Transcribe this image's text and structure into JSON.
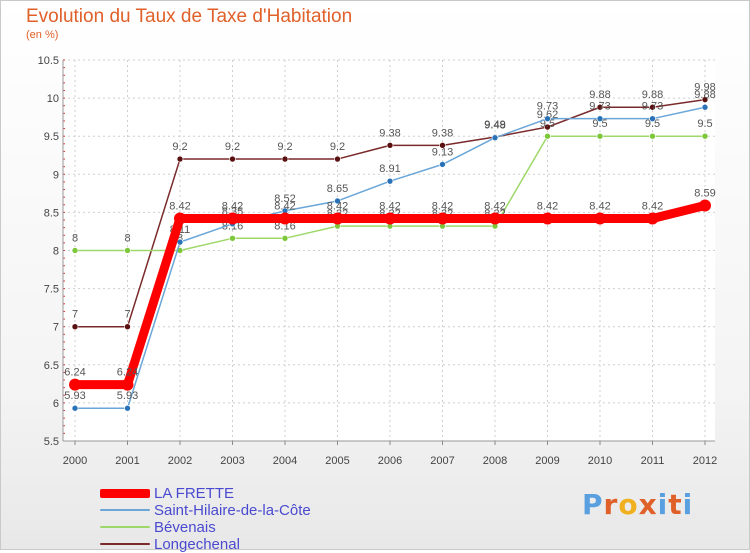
{
  "title": "Evolution du Taux de Taxe d'Habitation",
  "unit": "(en %)",
  "logo": {
    "text": "Proxiti",
    "letter_colors": [
      "#5aa0e0",
      "#e0602a",
      "#f0b020",
      "#e0602a",
      "#5aa0e0",
      "#e0602a",
      "#5aa0e0"
    ]
  },
  "chart_data": {
    "type": "line",
    "title": "Evolution du Taux de Taxe d'Habitation",
    "ylabel": "(en %)",
    "xlabel": "",
    "ylim": [
      5.5,
      10.5
    ],
    "yticks": [
      5.5,
      6,
      6.5,
      7,
      7.5,
      8,
      8.5,
      9,
      9.5,
      10,
      10.5
    ],
    "grid": true,
    "legend_position": "bottom-left",
    "categories": [
      "2000",
      "2001",
      "2002",
      "2003",
      "2004",
      "2005",
      "2006",
      "2007",
      "2008",
      "2009",
      "2010",
      "2011",
      "2012"
    ],
    "series": [
      {
        "name": "Longechenal",
        "color": "#7a2a2a",
        "marker": "#5a1010",
        "values": [
          7,
          7,
          9.2,
          9.2,
          9.2,
          9.2,
          9.38,
          9.38,
          9.49,
          9.62,
          9.88,
          9.88,
          9.98
        ]
      },
      {
        "name": "Bévenais",
        "color": "#9ed86a",
        "marker": "#7cc83a",
        "values": [
          8,
          8,
          8,
          8.16,
          8.16,
          8.32,
          8.32,
          8.32,
          8.32,
          9.5,
          9.5,
          9.5,
          9.5
        ]
      },
      {
        "name": "Saint-Hilaire-de-la-Côte",
        "color": "#6aa6d8",
        "marker": "#2a72b8",
        "values": [
          5.93,
          5.93,
          8.11,
          8.35,
          8.52,
          8.65,
          8.91,
          9.13,
          9.48,
          9.73,
          9.73,
          9.73,
          9.88
        ]
      },
      {
        "name": "LA FRETTE",
        "color": "#ff0000",
        "marker": "#ff0000",
        "values": [
          6.24,
          6.24,
          8.42,
          8.42,
          8.42,
          8.42,
          8.42,
          8.42,
          8.42,
          8.42,
          8.42,
          8.42,
          8.59
        ]
      }
    ],
    "legend": [
      {
        "name": "LA FRETTE",
        "color": "#ff0000",
        "thickness": 9
      },
      {
        "name": "Saint-Hilaire-de-la-Côte",
        "color": "#6aa6d8",
        "thickness": 2
      },
      {
        "name": "Bévenais",
        "color": "#9ed86a",
        "thickness": 2
      },
      {
        "name": "Longechenal",
        "color": "#7a2a2a",
        "thickness": 2
      }
    ]
  }
}
